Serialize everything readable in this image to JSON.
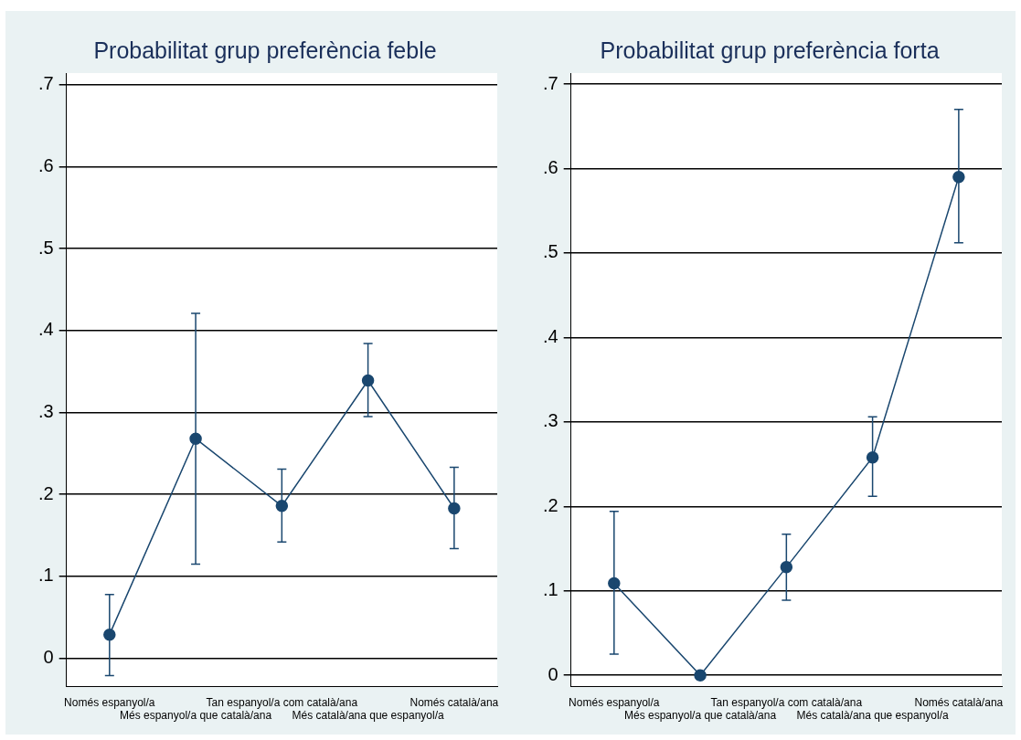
{
  "chart_data": [
    {
      "type": "line",
      "title": "Probabilitat grup preferència feble",
      "categories": [
        "Només espanyol/a",
        "Més espanyol/a que català/ana",
        "Tan espanyol/a com català/ana",
        "Més català/ana que espanyol/a",
        "Només català/ana"
      ],
      "series": [
        {
          "color": "#1a476f",
          "values": [
            0.029,
            0.268,
            0.186,
            0.339,
            0.183
          ],
          "errors": [
            [
              -0.021,
              0.078
            ],
            [
              0.115,
              0.421
            ],
            [
              0.142,
              0.231
            ],
            [
              0.295,
              0.384
            ],
            [
              0.134,
              0.233
            ]
          ]
        }
      ],
      "ylim": [
        -0.034,
        0.714
      ],
      "yticks": [
        0,
        {
          "value": 0.1,
          "label": ".1"
        },
        {
          "value": 0.2,
          "label": ".2"
        },
        {
          "value": 0.3,
          "label": ".3"
        },
        {
          "value": 0.4,
          "label": ".4"
        },
        {
          "value": 0.5,
          "label": ".5"
        },
        {
          "value": 0.6,
          "label": ".6"
        },
        {
          "value": 0.7,
          "label": ".7"
        }
      ],
      "grid": "y",
      "legend": false,
      "marker": "circle",
      "line_style": "solid"
    },
    {
      "type": "line",
      "title": "Probabilitat grup preferència forta",
      "categories": [
        "Només espanyol/a",
        "Més espanyol/a que català/ana",
        "Tan espanyol/a com català/ana",
        "Més català/ana que espanyol/a",
        "Només català/ana"
      ],
      "series": [
        {
          "color": "#1a476f",
          "values": [
            0.109,
            0,
            0.128,
            0.258,
            0.59
          ],
          "errors": [
            [
              0.025,
              0.194
            ],
            null,
            [
              0.089,
              0.167
            ],
            [
              0.212,
              0.306
            ],
            [
              0.512,
              0.67
            ]
          ]
        }
      ],
      "ylim": [
        -0.013,
        0.713
      ],
      "yticks": [
        0,
        {
          "value": 0.1,
          "label": ".1"
        },
        {
          "value": 0.2,
          "label": ".2"
        },
        {
          "value": 0.3,
          "label": ".3"
        },
        {
          "value": 0.4,
          "label": ".4"
        },
        {
          "value": 0.5,
          "label": ".5"
        },
        {
          "value": 0.6,
          "label": ".6"
        },
        {
          "value": 0.7,
          "label": ".7"
        }
      ],
      "grid": "y",
      "legend": false,
      "marker": "circle",
      "line_style": "solid"
    }
  ]
}
